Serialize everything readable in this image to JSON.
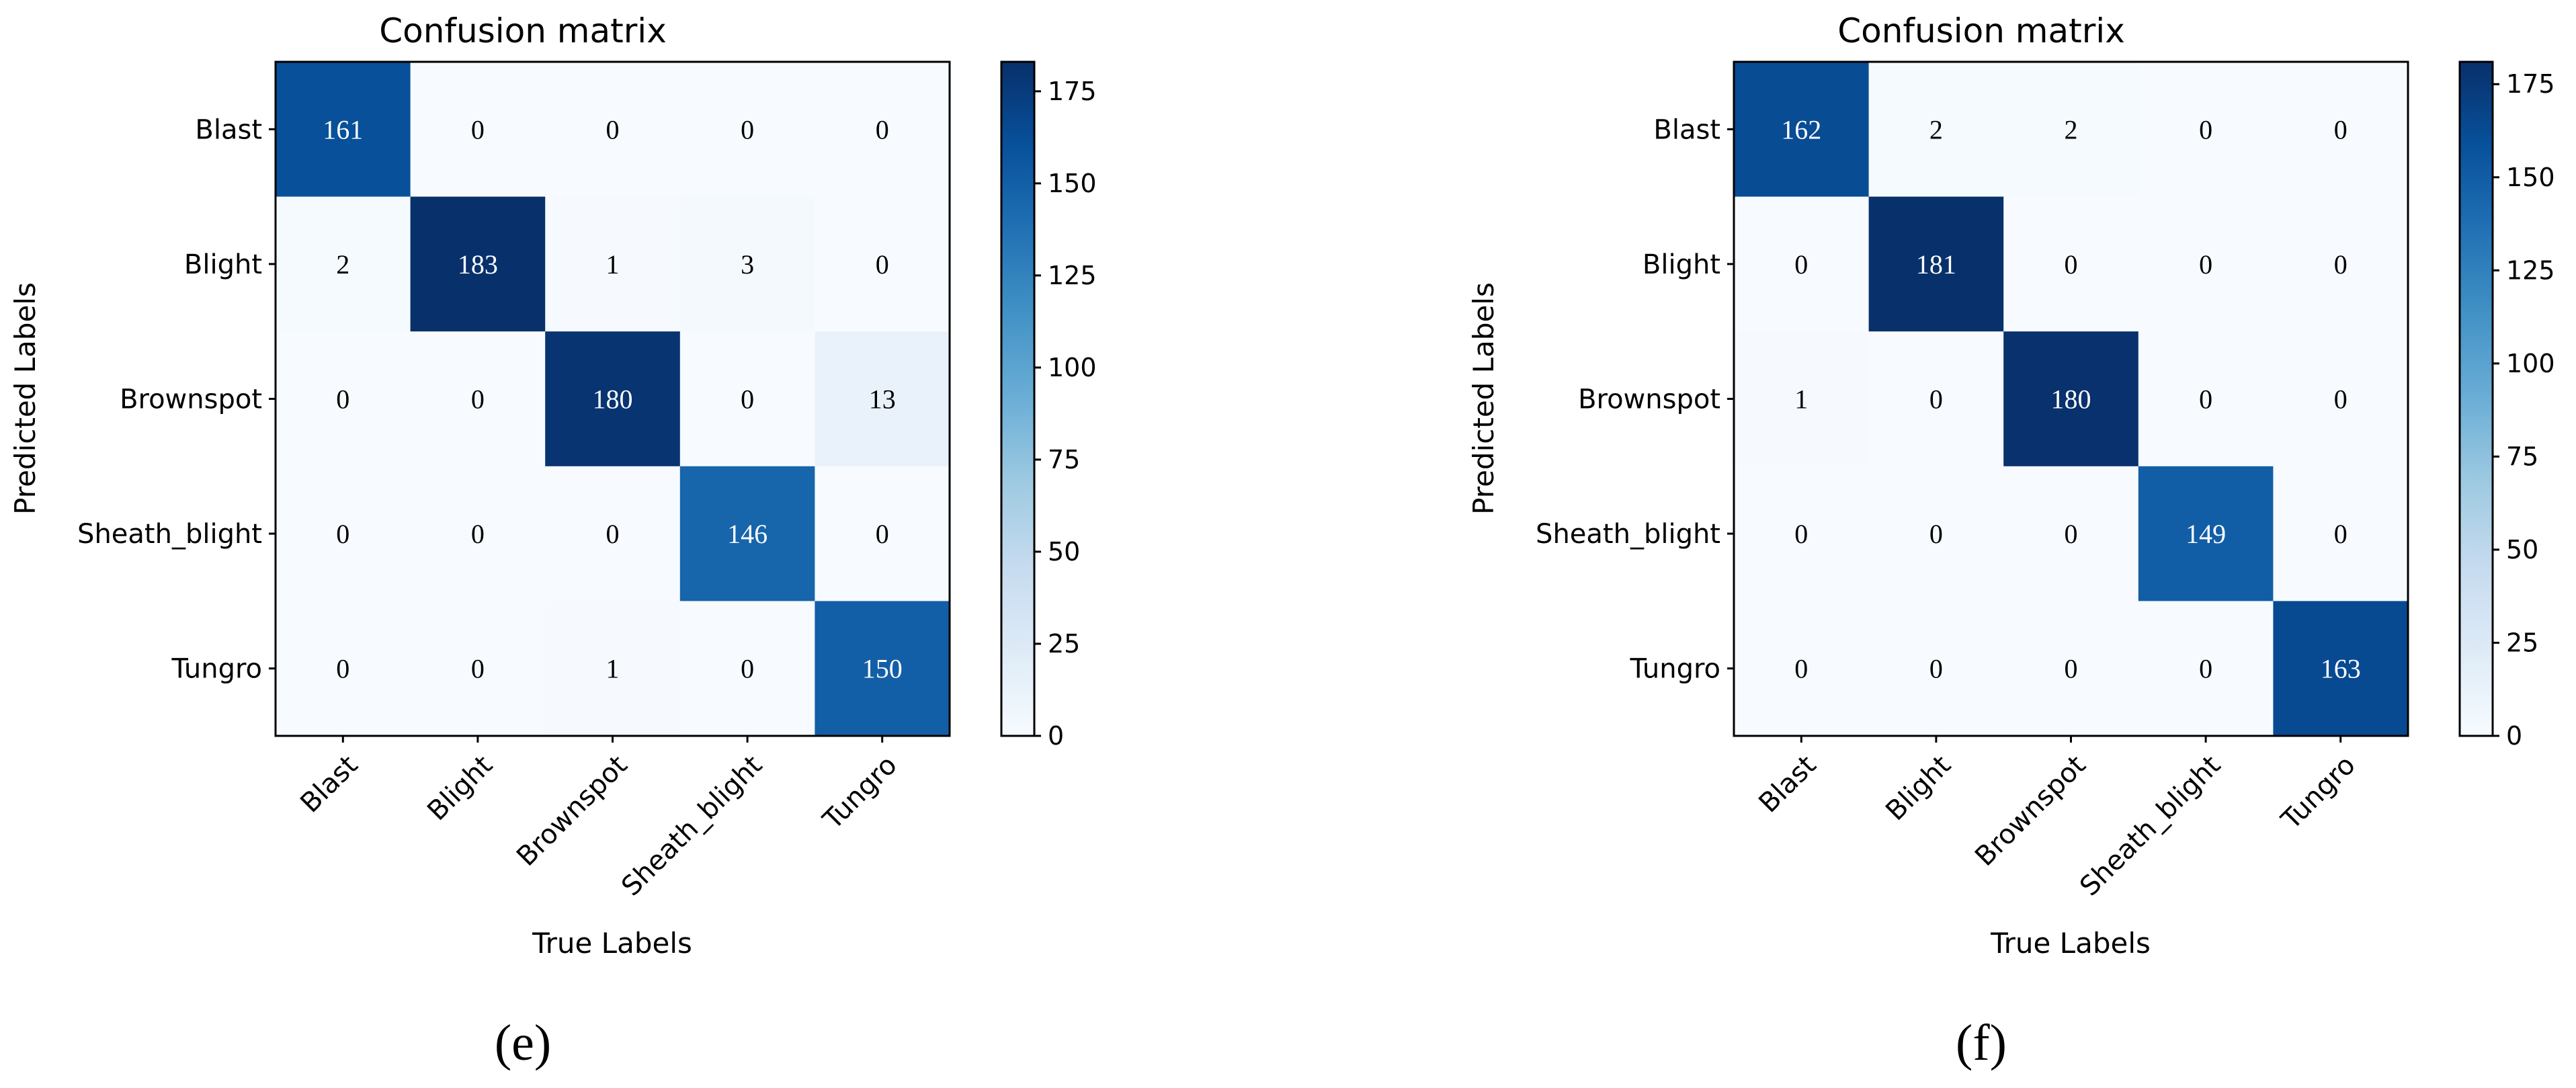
{
  "chart_data": [
    {
      "type": "heatmap",
      "title": "Confusion matrix",
      "xlabel": "True Labels",
      "ylabel": "Predicted Labels",
      "categories": [
        "Blast",
        "Blight",
        "Brownspot",
        "Sheath_blight",
        "Tungro"
      ],
      "matrix": [
        [
          161,
          0,
          0,
          0,
          0
        ],
        [
          2,
          183,
          1,
          3,
          0
        ],
        [
          0,
          0,
          180,
          0,
          13
        ],
        [
          0,
          0,
          0,
          146,
          0
        ],
        [
          0,
          0,
          1,
          0,
          150
        ]
      ],
      "colorbar": {
        "vmin": 0,
        "vmax": 183,
        "ticks": [
          0,
          25,
          50,
          75,
          100,
          125,
          150,
          175
        ]
      },
      "panel_label": "(e)"
    },
    {
      "type": "heatmap",
      "title": "Confusion matrix",
      "xlabel": "True Labels",
      "ylabel": "Predicted Labels",
      "categories": [
        "Blast",
        "Blight",
        "Brownspot",
        "Sheath_blight",
        "Tungro"
      ],
      "matrix": [
        [
          162,
          2,
          2,
          0,
          0
        ],
        [
          0,
          181,
          0,
          0,
          0
        ],
        [
          1,
          0,
          180,
          0,
          0
        ],
        [
          0,
          0,
          0,
          149,
          0
        ],
        [
          0,
          0,
          0,
          0,
          163
        ]
      ],
      "colorbar": {
        "vmin": 0,
        "vmax": 181,
        "ticks": [
          0,
          25,
          50,
          75,
          100,
          125,
          150,
          175
        ]
      },
      "panel_label": "(f)"
    }
  ],
  "colors": {
    "blues": [
      "#f7fbff",
      "#deebf7",
      "#c6dbef",
      "#9ecae1",
      "#6baed6",
      "#4292c6",
      "#2171b5",
      "#08519c",
      "#08306b"
    ]
  }
}
